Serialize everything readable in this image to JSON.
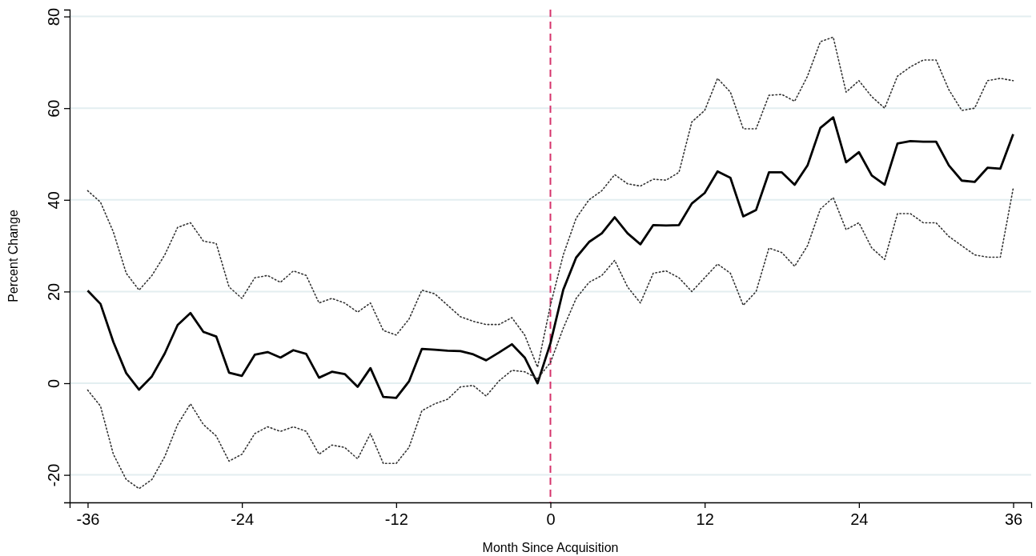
{
  "chart_data": {
    "type": "line",
    "xlabel": "Month Since Acquisition",
    "ylabel": "Percent Change",
    "x": [
      -36,
      -35,
      -34,
      -33,
      -32,
      -31,
      -30,
      -29,
      -28,
      -27,
      -26,
      -25,
      -24,
      -23,
      -22,
      -21,
      -20,
      -19,
      -18,
      -17,
      -16,
      -15,
      -14,
      -13,
      -12,
      -11,
      -10,
      -9,
      -8,
      -7,
      -6,
      -5,
      -4,
      -3,
      -2,
      -1,
      0,
      1,
      2,
      3,
      4,
      5,
      6,
      7,
      8,
      9,
      10,
      11,
      12,
      13,
      14,
      15,
      16,
      17,
      18,
      19,
      20,
      21,
      22,
      23,
      24,
      25,
      26,
      27,
      28,
      29,
      30,
      31,
      32,
      33,
      34,
      35,
      36
    ],
    "series": [
      {
        "color": "#000000",
        "line_style": "solid",
        "values": [
          20.2,
          17.3,
          9,
          2.2,
          -1.4,
          1.5,
          6.5,
          12.7,
          15.3,
          11.2,
          10.2,
          2.3,
          1.6,
          6.2,
          6.8,
          5.6,
          7.2,
          6.4,
          1.2,
          2.5,
          2,
          -0.8,
          3.3,
          -3,
          -3.2,
          0.4,
          7.5,
          7.3,
          7.1,
          7,
          6.3,
          5,
          6.7,
          8.5,
          5.6,
          0,
          8.7,
          20.4,
          27.4,
          30.8,
          32.7,
          36.2,
          32.7,
          30.3,
          34.5,
          34.4,
          34.5,
          39.2,
          41.5,
          46.2,
          44.8,
          36.4,
          37.8,
          46,
          46,
          43.3,
          47.5,
          55.7,
          58,
          48.2,
          50.4,
          45.3,
          43.3,
          52.3,
          52.8,
          52.7,
          52.7,
          47.5,
          44.2,
          43.9,
          47,
          46.8,
          54.3
        ]
      },
      {
        "color": "#333333",
        "line_style": "dotted",
        "values": [
          42,
          39.5,
          33,
          24,
          20.3,
          23.5,
          28,
          34,
          35,
          31,
          30.5,
          21,
          18.5,
          23,
          23.5,
          22,
          24.5,
          23.5,
          17.5,
          18.5,
          17.5,
          15.5,
          17.5,
          11.5,
          10.5,
          14,
          20.3,
          19.5,
          17,
          14.5,
          13.5,
          12.8,
          12.8,
          14.3,
          10.5,
          3.5,
          17,
          28,
          36,
          40,
          42,
          45.5,
          43.5,
          43,
          44.5,
          44.3,
          46,
          57,
          59.5,
          66.5,
          63.5,
          55.5,
          55.5,
          62.8,
          63,
          61.5,
          67,
          74.5,
          75.5,
          63.5,
          66,
          62.5,
          60,
          67,
          69,
          70.5,
          70.5,
          64,
          59.5,
          60,
          66,
          66.5,
          66
        ]
      },
      {
        "color": "#333333",
        "line_style": "dotted",
        "values": [
          -1.5,
          -5,
          -15.5,
          -21,
          -23,
          -21,
          -16,
          -9,
          -4.5,
          -9,
          -11.5,
          -17,
          -15.5,
          -11,
          -9.5,
          -10.5,
          -9.5,
          -10.5,
          -15.5,
          -13.5,
          -14,
          -16.5,
          -11,
          -17.5,
          -17.5,
          -14,
          -6,
          -4.5,
          -3.5,
          -0.8,
          -0.5,
          -2.8,
          0.5,
          2.8,
          2.5,
          1,
          4.5,
          12,
          18.5,
          22,
          23.5,
          26.8,
          21,
          17.5,
          24,
          24.5,
          23,
          20,
          23,
          26,
          24,
          17,
          20,
          29.5,
          28.5,
          25.5,
          30,
          38,
          40.5,
          33.5,
          35,
          29.5,
          27,
          37,
          37,
          35,
          35,
          32,
          30,
          28,
          27.5,
          27.5,
          42.5
        ]
      }
    ],
    "xlim": [
      -37.4,
      37.4
    ],
    "ylim": [
      -26,
      81.5
    ],
    "xticks": [
      -36,
      -24,
      -12,
      0,
      12,
      24,
      36
    ],
    "yticks": [
      -20,
      0,
      20,
      40,
      60,
      80
    ],
    "grid": "y",
    "marker": "none",
    "ref_lines": [
      {
        "axis": "x",
        "value": 0,
        "color": "#d6336c",
        "line_style": "dashed"
      }
    ]
  }
}
